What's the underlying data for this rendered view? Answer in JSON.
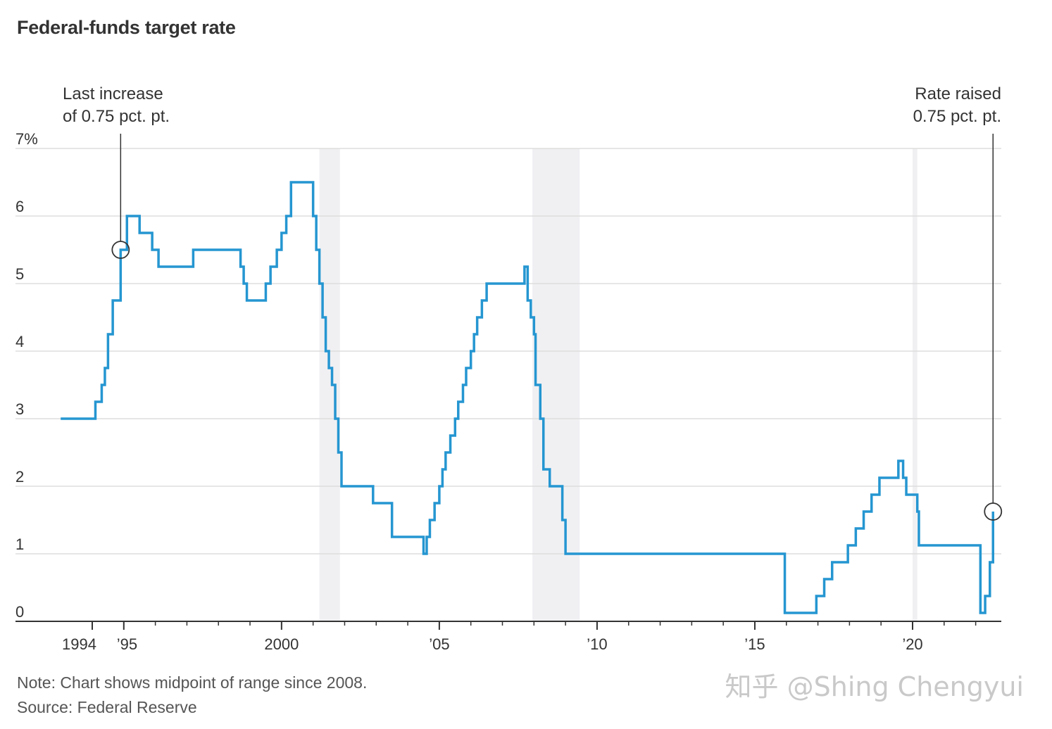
{
  "header": {
    "title": "Federal-funds target rate"
  },
  "annotations": {
    "left": {
      "line1": "Last increase",
      "line2": "of 0.75 pct. pt."
    },
    "right": {
      "line1": "Rate raised",
      "line2": "0.75 pct. pt."
    }
  },
  "footer": {
    "note": "Note: Chart shows midpoint of range since 2008.",
    "source": "Source: Federal Reserve",
    "watermark": "知乎 @Shing Chengyui"
  },
  "colors": {
    "line": "#2596d1",
    "grid": "#dddddd",
    "recession": "#f0f0f3",
    "axis": "#333333"
  },
  "chart_data": {
    "type": "line",
    "title": "Federal-funds target rate",
    "xlabel": "",
    "ylabel": "",
    "xlim": [
      1993.0,
      2022.75
    ],
    "ylim": [
      0,
      7
    ],
    "y_ticks": [
      {
        "value": 0,
        "label": "0"
      },
      {
        "value": 1,
        "label": "1"
      },
      {
        "value": 2,
        "label": "2"
      },
      {
        "value": 3,
        "label": "3"
      },
      {
        "value": 4,
        "label": "4"
      },
      {
        "value": 5,
        "label": "5"
      },
      {
        "value": 6,
        "label": "6"
      },
      {
        "value": 7,
        "label": "7%"
      }
    ],
    "x_ticks": [
      {
        "value": 1994,
        "label": "1994"
      },
      {
        "value": 1995,
        "label": "’95"
      },
      {
        "value": 2000,
        "label": "2000"
      },
      {
        "value": 2005,
        "label": "’05"
      },
      {
        "value": 2010,
        "label": "’10"
      },
      {
        "value": 2015,
        "label": "’15"
      },
      {
        "value": 2020,
        "label": "’20"
      }
    ],
    "recessions": [
      [
        2001.2,
        2001.85
      ],
      [
        2007.95,
        2009.45
      ],
      [
        2020.0,
        2020.15
      ]
    ],
    "grid": true,
    "step": true,
    "series": [
      {
        "x": [
          1993.0,
          1994.1,
          1994.3,
          1994.4,
          1994.5,
          1994.65,
          1994.9,
          1995.1,
          1995.5,
          1995.9,
          1996.1,
          1997.2,
          1998.7,
          1998.8,
          1998.9,
          1999.5,
          1999.65,
          1999.85,
          2000.0,
          2000.15,
          2000.3,
          2001.0,
          2001.1,
          2001.2,
          2001.3,
          2001.4,
          2001.5,
          2001.6,
          2001.7,
          2001.8,
          2001.9,
          2002.9,
          2003.5,
          2004.5,
          2004.6,
          2004.7,
          2004.85,
          2005.0,
          2005.1,
          2005.2,
          2005.35,
          2005.5,
          2005.6,
          2005.75,
          2005.85,
          2006.0,
          2006.1,
          2006.2,
          2006.35,
          2006.5,
          2007.7,
          2007.8,
          2007.9,
          2008.0,
          2008.05,
          2008.2,
          2008.3,
          2008.5,
          2008.9,
          2009.0,
          2015.95,
          2016.95,
          2017.2,
          2017.45,
          2017.95,
          2018.2,
          2018.45,
          2018.7,
          2018.95,
          2019.55,
          2019.7,
          2019.8,
          2020.15,
          2020.2,
          2022.15,
          2022.3,
          2022.45,
          2022.55
        ],
        "y": [
          3.0,
          3.25,
          3.5,
          3.75,
          4.25,
          4.75,
          5.5,
          6.0,
          5.75,
          5.5,
          5.25,
          5.5,
          5.25,
          5.0,
          4.75,
          5.0,
          5.25,
          5.5,
          5.75,
          6.0,
          6.5,
          6.0,
          5.5,
          5.0,
          4.5,
          4.0,
          3.75,
          3.5,
          3.0,
          2.5,
          2.0,
          1.75,
          1.25,
          1.0,
          1.25,
          1.5,
          1.75,
          2.0,
          2.25,
          2.5,
          2.75,
          3.0,
          3.25,
          3.5,
          3.75,
          4.0,
          4.25,
          4.5,
          4.75,
          5.0,
          5.25,
          4.75,
          4.5,
          4.25,
          3.5,
          3.0,
          2.25,
          2.0,
          1.5,
          1.0,
          0.125,
          0.375,
          0.625,
          0.875,
          1.125,
          1.375,
          1.625,
          1.875,
          2.125,
          2.375,
          2.125,
          1.875,
          1.625,
          1.125,
          0.125,
          0.375,
          0.875,
          1.625
        ]
      }
    ],
    "markers": [
      {
        "x": 1994.9,
        "y": 5.5
      },
      {
        "x": 2022.55,
        "y": 1.625
      }
    ]
  }
}
